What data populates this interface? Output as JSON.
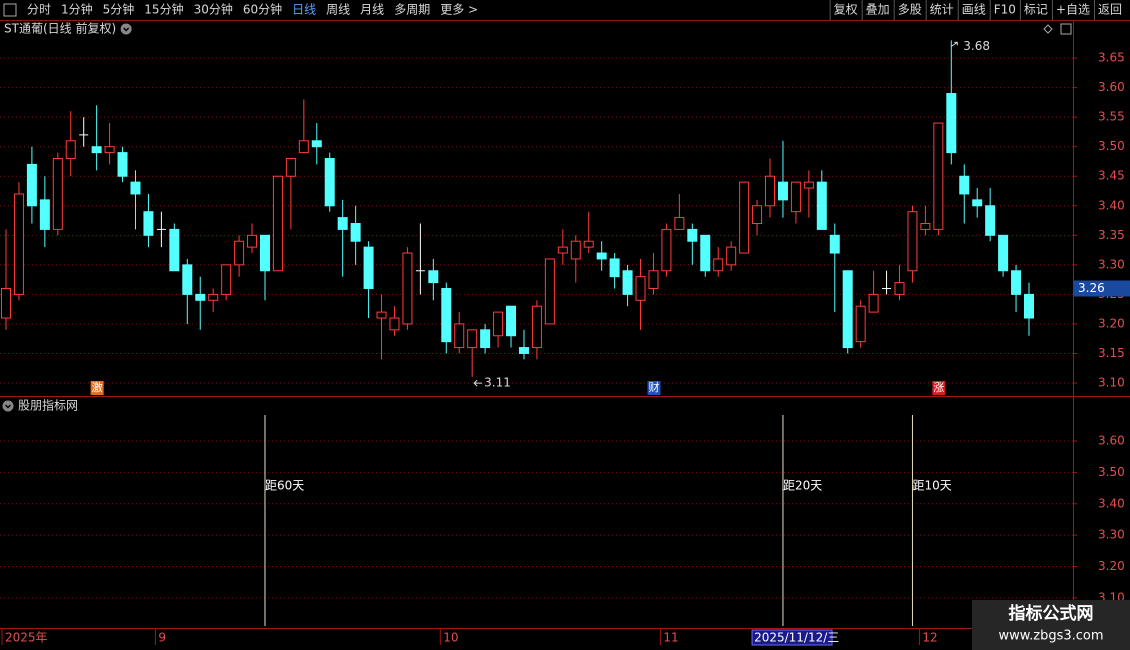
{
  "toolbar": {
    "left": [
      "分时",
      "1分钟",
      "5分钟",
      "15分钟",
      "30分钟",
      "60分钟",
      "日线",
      "周线",
      "月线",
      "多周期",
      "更多 >"
    ],
    "active_index": 6,
    "right": [
      "复权",
      "叠加",
      "多股",
      "统计",
      "画线",
      "F10",
      "标记",
      "+自选",
      "返回"
    ]
  },
  "chart_data": [
    {
      "type": "candlestick",
      "title": "ST通葡(日线 前复权)",
      "up_color": "#ff3c3c",
      "down_color": "#54ffff",
      "grid": true,
      "categories": [
        "2025年",
        null,
        null,
        null,
        null,
        null,
        null,
        null,
        null,
        null,
        null,
        null,
        "9",
        null,
        null,
        null,
        null,
        null,
        null,
        null,
        null,
        null,
        null,
        null,
        null,
        null,
        null,
        null,
        null,
        null,
        null,
        null,
        null,
        null,
        "10",
        null,
        null,
        null,
        null,
        null,
        null,
        null,
        null,
        null,
        null,
        null,
        null,
        null,
        null,
        null,
        null,
        "11",
        null,
        null,
        null,
        null,
        null,
        null,
        "2025/11/12/三",
        null,
        null,
        null,
        null,
        null,
        null,
        null,
        null,
        null,
        null,
        null,
        null,
        "12",
        null,
        null,
        null,
        null,
        null,
        null,
        null,
        null
      ],
      "cursor_index": 58,
      "open": [
        3.21,
        3.25,
        3.47,
        3.41,
        3.36,
        3.48,
        3.52,
        3.5,
        3.49,
        3.49,
        3.44,
        3.39,
        3.36,
        3.36,
        3.3,
        3.25,
        3.24,
        3.25,
        3.3,
        3.33,
        3.35,
        3.29,
        3.45,
        3.49,
        3.51,
        3.48,
        3.38,
        3.37,
        3.33,
        3.21,
        3.19,
        3.2,
        3.29,
        3.29,
        3.26,
        3.16,
        3.16,
        3.19,
        3.18,
        3.23,
        3.16,
        3.16,
        3.2,
        3.32,
        3.31,
        3.33,
        3.32,
        3.31,
        3.29,
        3.24,
        3.26,
        3.29,
        3.36,
        3.36,
        3.35,
        3.29,
        3.3,
        3.32,
        3.37,
        3.4,
        3.44,
        3.39,
        3.43,
        3.44,
        3.35,
        3.29,
        3.17,
        3.22,
        3.26,
        3.25,
        3.29,
        3.36,
        3.36,
        3.59,
        3.45,
        3.41,
        3.4,
        3.35,
        3.29,
        3.25
      ],
      "high": [
        3.36,
        3.44,
        3.5,
        3.45,
        3.49,
        3.56,
        3.55,
        3.57,
        3.54,
        3.5,
        3.46,
        3.42,
        3.39,
        3.37,
        3.31,
        3.28,
        3.26,
        3.3,
        3.35,
        3.37,
        3.35,
        3.45,
        3.48,
        3.58,
        3.54,
        3.49,
        3.41,
        3.4,
        3.34,
        3.25,
        3.23,
        3.33,
        3.37,
        3.31,
        3.27,
        3.22,
        3.19,
        3.2,
        3.22,
        3.23,
        3.19,
        3.24,
        3.31,
        3.36,
        3.35,
        3.39,
        3.34,
        3.32,
        3.3,
        3.31,
        3.32,
        3.37,
        3.42,
        3.37,
        3.35,
        3.33,
        3.34,
        3.44,
        3.41,
        3.48,
        3.51,
        3.44,
        3.46,
        3.46,
        3.37,
        3.29,
        3.24,
        3.29,
        3.29,
        3.3,
        3.4,
        3.4,
        3.54,
        3.68,
        3.47,
        3.43,
        3.43,
        3.35,
        3.3,
        3.27
      ],
      "low": [
        3.19,
        3.24,
        3.37,
        3.33,
        3.35,
        3.45,
        3.5,
        3.46,
        3.47,
        3.44,
        3.36,
        3.33,
        3.33,
        3.29,
        3.2,
        3.19,
        3.22,
        3.24,
        3.28,
        3.32,
        3.24,
        3.29,
        3.36,
        3.49,
        3.47,
        3.39,
        3.28,
        3.3,
        3.21,
        3.14,
        3.18,
        3.19,
        3.25,
        3.24,
        3.15,
        3.15,
        3.11,
        3.15,
        3.16,
        3.16,
        3.14,
        3.14,
        3.2,
        3.3,
        3.27,
        3.32,
        3.29,
        3.26,
        3.23,
        3.19,
        3.25,
        3.28,
        3.36,
        3.3,
        3.28,
        3.28,
        3.29,
        3.32,
        3.35,
        3.38,
        3.38,
        3.37,
        3.38,
        3.36,
        3.22,
        3.15,
        3.16,
        3.22,
        3.25,
        3.24,
        3.27,
        3.35,
        3.35,
        3.47,
        3.37,
        3.38,
        3.34,
        3.28,
        3.22,
        3.18
      ],
      "close": [
        3.26,
        3.42,
        3.4,
        3.36,
        3.48,
        3.51,
        3.52,
        3.49,
        3.5,
        3.45,
        3.42,
        3.35,
        3.36,
        3.29,
        3.25,
        3.24,
        3.25,
        3.3,
        3.34,
        3.35,
        3.29,
        3.45,
        3.48,
        3.51,
        3.5,
        3.4,
        3.36,
        3.34,
        3.26,
        3.22,
        3.21,
        3.32,
        3.29,
        3.27,
        3.17,
        3.2,
        3.19,
        3.16,
        3.22,
        3.18,
        3.15,
        3.23,
        3.31,
        3.33,
        3.34,
        3.34,
        3.31,
        3.28,
        3.25,
        3.28,
        3.29,
        3.36,
        3.38,
        3.34,
        3.29,
        3.31,
        3.33,
        3.44,
        3.4,
        3.45,
        3.41,
        3.44,
        3.44,
        3.36,
        3.32,
        3.16,
        3.23,
        3.25,
        3.26,
        3.27,
        3.39,
        3.37,
        3.54,
        3.49,
        3.42,
        3.4,
        3.35,
        3.29,
        3.25,
        3.21
      ],
      "current_price": 3.26,
      "badges": [
        {
          "index": 7,
          "label": "激",
          "color": "#e07020"
        },
        {
          "index": 50,
          "label": "财",
          "color": "#2050c0"
        },
        {
          "index": 72,
          "label": "涨",
          "color": "#d02020"
        }
      ],
      "ylim": [
        3.078,
        3.684
      ],
      "yticks": [
        {
          "value": 3.1,
          "label": "3.10"
        },
        3.15,
        {
          "value": 3.2,
          "label": "3.20"
        },
        3.25,
        {
          "value": 3.3,
          "label": "3.30"
        },
        3.35,
        {
          "value": 3.4,
          "label": "3.40"
        },
        3.45,
        {
          "value": 3.5,
          "label": "3.50"
        },
        3.55,
        {
          "value": 3.6,
          "label": "3.60"
        },
        3.65
      ]
    },
    {
      "type": "signal",
      "title": "股朋指标网",
      "color": "#e8e0c0",
      "signals": [
        {
          "index": 20,
          "label": "距60天"
        },
        {
          "index": 60,
          "label": "距20天"
        },
        {
          "index": 70,
          "label": "距10天"
        }
      ],
      "ylim": [
        3.004,
        3.683
      ],
      "yticks": [
        {
          "value": 3.1,
          "label": "3.10"
        },
        {
          "value": 3.2,
          "label": "3.20"
        },
        {
          "value": 3.3,
          "label": "3.30"
        },
        {
          "value": 3.4,
          "label": "3.40"
        },
        {
          "value": 3.5,
          "label": "3.50"
        },
        {
          "value": 3.6,
          "label": "3.60"
        }
      ]
    }
  ],
  "watermark": {
    "title": "指标公式网",
    "url": "www.zbgs3.com"
  }
}
